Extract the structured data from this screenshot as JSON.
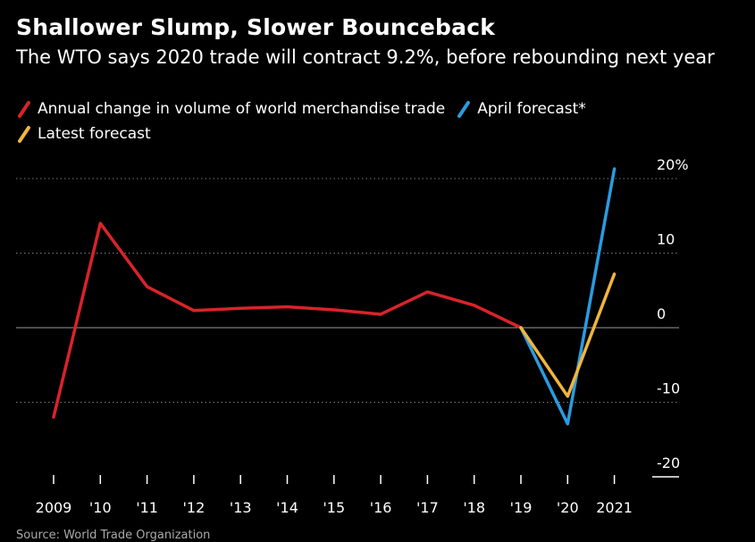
{
  "title": "Shallower Slump, Slower Bounceback",
  "subtitle": "The WTO says 2020 trade will contract 9.2%, before rebounding next year",
  "legend": {
    "items": [
      {
        "label": "Annual change in volume of world merchandise trade",
        "color": "#d9232a"
      },
      {
        "label": "April forecast*",
        "color": "#2b9be0"
      },
      {
        "label": "Latest forecast",
        "color": "#f1b53d"
      }
    ]
  },
  "chart_data": {
    "type": "line",
    "x_labels": [
      "2009",
      "'10",
      "'11",
      "'12",
      "'13",
      "'14",
      "'15",
      "'16",
      "'17",
      "'18",
      "'19",
      "'20",
      "2021"
    ],
    "y_ticks": [
      {
        "value": 20,
        "label": "20%"
      },
      {
        "value": 10,
        "label": "10"
      },
      {
        "value": 0,
        "label": "0"
      },
      {
        "value": -10,
        "label": "-10"
      },
      {
        "value": -20,
        "label": "-20"
      }
    ],
    "ylim": [
      -20,
      20
    ],
    "grid": "dotted horizontal",
    "y_axis_position": "right",
    "series": [
      {
        "name": "Annual change in volume of world merchandise trade",
        "color": "#d9232a",
        "x": [
          "2009",
          "'10",
          "'11",
          "'12",
          "'13",
          "'14",
          "'15",
          "'16",
          "'17",
          "'18",
          "'19"
        ],
        "values": [
          -12,
          14,
          5.5,
          2.3,
          2.6,
          2.8,
          2.4,
          1.8,
          4.8,
          3,
          0
        ]
      },
      {
        "name": "April forecast*",
        "color": "#2b9be0",
        "x": [
          "'19",
          "'20",
          "2021"
        ],
        "values": [
          0,
          -12.9,
          21.3
        ]
      },
      {
        "name": "Latest forecast",
        "color": "#f1b53d",
        "x": [
          "'19",
          "'20",
          "2021"
        ],
        "values": [
          0,
          -9.2,
          7.2
        ]
      }
    ]
  },
  "source": "Source: World Trade Organization"
}
